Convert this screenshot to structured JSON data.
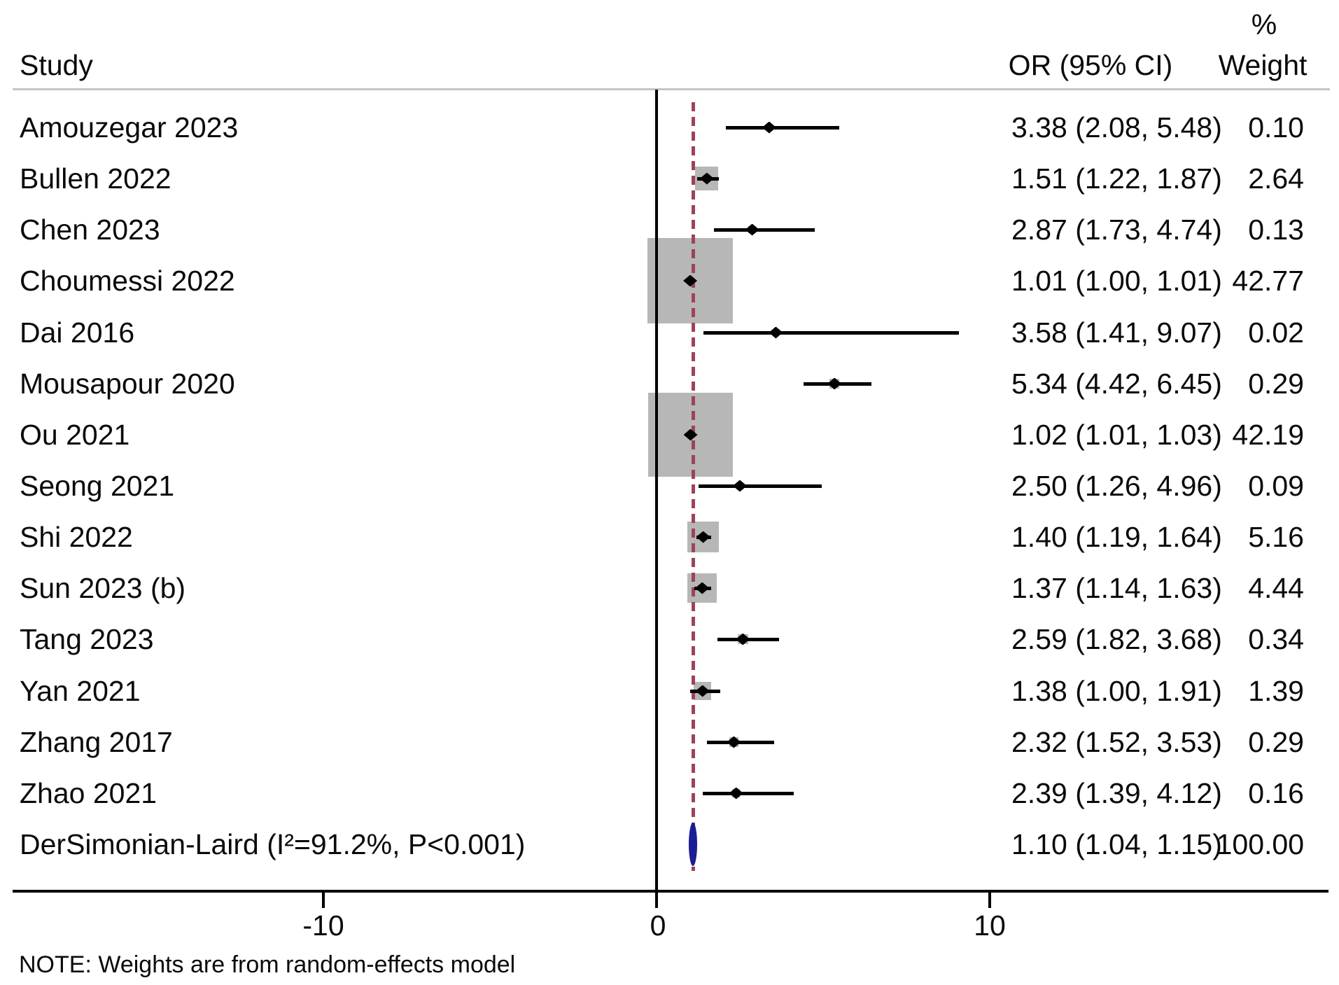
{
  "header": {
    "study_col": "Study",
    "or_col": "OR (95% CI)",
    "weight_pct": "%",
    "weight_col": "Weight"
  },
  "note": "NOTE: Weights are from random-effects model",
  "colors": {
    "text": "#0a0a0a",
    "header_rule": "#c5c5c5",
    "axis": "#000000",
    "weight_square": "#b7b7b7",
    "pooled_reference_line": "#9c4455",
    "pooled_marker": "#1c1c94"
  },
  "chart_data": {
    "type": "forest",
    "title": "",
    "xlabel": "",
    "x_axis": {
      "ticks": [
        -10,
        0,
        10
      ],
      "tick_labels": [
        "-10",
        "0",
        "10"
      ],
      "zero_line": 0,
      "pooled_dashed_line": 1.1,
      "xlim": [
        -19.3,
        20.2
      ],
      "grid": false
    },
    "studies": [
      {
        "label": "Amouzegar 2023",
        "or": 3.38,
        "ci_low": 2.08,
        "ci_high": 5.48,
        "or_text": "3.38 (2.08, 5.48)",
        "weight": 0.1,
        "weight_text": "0.10"
      },
      {
        "label": "Bullen 2022",
        "or": 1.51,
        "ci_low": 1.22,
        "ci_high": 1.87,
        "or_text": "1.51 (1.22, 1.87)",
        "weight": 2.64,
        "weight_text": "2.64"
      },
      {
        "label": "Chen 2023",
        "or": 2.87,
        "ci_low": 1.73,
        "ci_high": 4.74,
        "or_text": "2.87 (1.73, 4.74)",
        "weight": 0.13,
        "weight_text": "0.13"
      },
      {
        "label": "Choumessi 2022",
        "or": 1.01,
        "ci_low": 1.0,
        "ci_high": 1.01,
        "or_text": "1.01 (1.00, 1.01)",
        "weight": 42.77,
        "weight_text": "42.77"
      },
      {
        "label": "Dai 2016",
        "or": 3.58,
        "ci_low": 1.41,
        "ci_high": 9.07,
        "or_text": "3.58 (1.41, 9.07)",
        "weight": 0.02,
        "weight_text": "0.02"
      },
      {
        "label": "Mousapour 2020",
        "or": 5.34,
        "ci_low": 4.42,
        "ci_high": 6.45,
        "or_text": "5.34 (4.42, 6.45)",
        "weight": 0.29,
        "weight_text": "0.29"
      },
      {
        "label": "Ou 2021",
        "or": 1.02,
        "ci_low": 1.01,
        "ci_high": 1.03,
        "or_text": "1.02 (1.01, 1.03)",
        "weight": 42.19,
        "weight_text": "42.19"
      },
      {
        "label": "Seong 2021",
        "or": 2.5,
        "ci_low": 1.26,
        "ci_high": 4.96,
        "or_text": "2.50 (1.26, 4.96)",
        "weight": 0.09,
        "weight_text": "0.09"
      },
      {
        "label": "Shi 2022",
        "or": 1.4,
        "ci_low": 1.19,
        "ci_high": 1.64,
        "or_text": "1.40 (1.19, 1.64)",
        "weight": 5.16,
        "weight_text": "5.16"
      },
      {
        "label": "Sun 2023 (b)",
        "or": 1.37,
        "ci_low": 1.14,
        "ci_high": 1.63,
        "or_text": "1.37 (1.14, 1.63)",
        "weight": 4.44,
        "weight_text": "4.44"
      },
      {
        "label": "Tang 2023",
        "or": 2.59,
        "ci_low": 1.82,
        "ci_high": 3.68,
        "or_text": "2.59 (1.82, 3.68)",
        "weight": 0.34,
        "weight_text": "0.34"
      },
      {
        "label": "Yan 2021",
        "or": 1.38,
        "ci_low": 1.0,
        "ci_high": 1.91,
        "or_text": "1.38 (1.00, 1.91)",
        "weight": 1.39,
        "weight_text": "1.39"
      },
      {
        "label": "Zhang 2017",
        "or": 2.32,
        "ci_low": 1.52,
        "ci_high": 3.53,
        "or_text": "2.32 (1.52, 3.53)",
        "weight": 0.29,
        "weight_text": "0.29"
      },
      {
        "label": "Zhao 2021",
        "or": 2.39,
        "ci_low": 1.39,
        "ci_high": 4.12,
        "or_text": "2.39 (1.39, 4.12)",
        "weight": 0.16,
        "weight_text": "0.16"
      }
    ],
    "pooled": {
      "label": "DerSimonian-Laird (I²=91.2%, P<0.001)",
      "or": 1.1,
      "ci_low": 1.04,
      "ci_high": 1.15,
      "or_text": "1.10 (1.04, 1.15)",
      "weight": 100.0,
      "weight_text": "100.00"
    },
    "legend_position": "none"
  }
}
